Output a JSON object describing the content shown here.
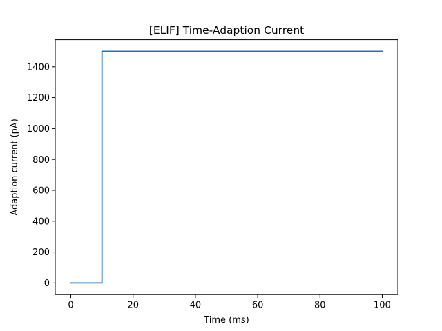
{
  "chart_data": {
    "type": "line",
    "title": "[ELIF] Time-Adaption Current",
    "xlabel": "Time (ms)",
    "ylabel": "Adaption current (pA)",
    "xlim": [
      -5,
      105
    ],
    "ylim": [
      -75,
      1575
    ],
    "xticks": [
      0,
      20,
      40,
      60,
      80,
      100
    ],
    "yticks": [
      0,
      200,
      400,
      600,
      800,
      1000,
      1200,
      1400
    ],
    "grid": false,
    "series": [
      {
        "color": "#1f77b4",
        "x": [
          0,
          10,
          10,
          100
        ],
        "y": [
          0,
          0,
          1500,
          1500
        ]
      }
    ]
  }
}
